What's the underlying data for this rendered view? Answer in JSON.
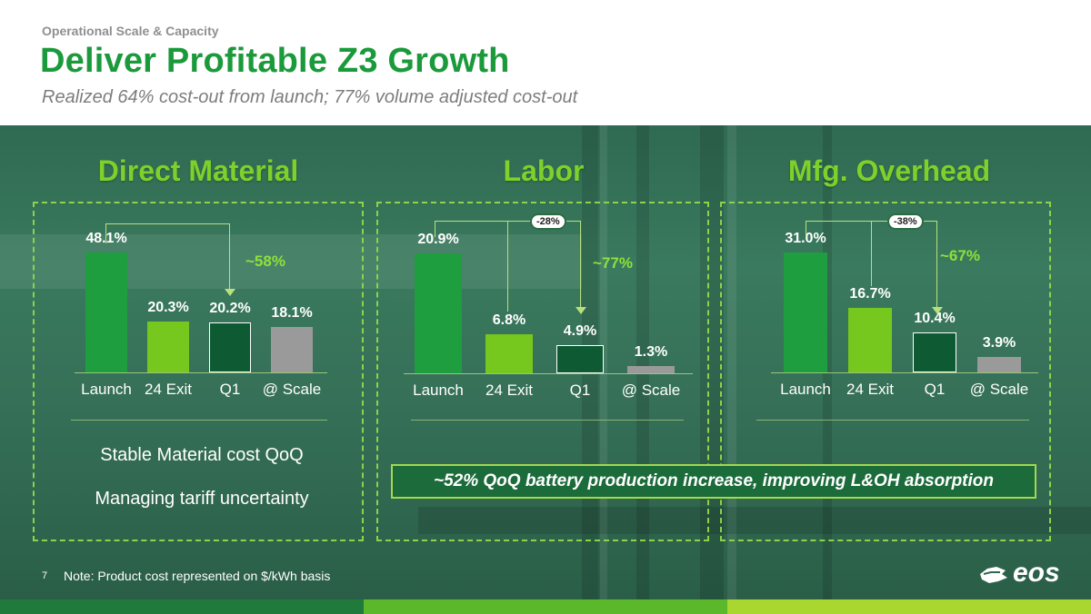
{
  "header": {
    "eyebrow": "Operational Scale & Capacity",
    "title": "Deliver Profitable Z3 Growth",
    "subtitle": "Realized 64% cost-out from launch; 77% volume adjusted cost-out"
  },
  "colors": {
    "title_green": "#1b9a3b",
    "section_green": "#7dd12a",
    "bar_launch": "#1e9e3e",
    "bar_exit": "#76c71e",
    "bar_q1": "#0e5a33",
    "bar_scale": "#9a9a9a"
  },
  "sections": [
    {
      "title": "Direct Material",
      "change_label": "~58%",
      "categories": [
        "Launch",
        "24 Exit",
        "Q1",
        "@ Scale"
      ],
      "values": [
        48.1,
        20.3,
        20.2,
        18.1
      ],
      "value_labels": [
        "48.1%",
        "20.3%",
        "20.2%",
        "18.1%"
      ],
      "notes": [
        "Stable Material cost QoQ",
        "Managing tariff uncertainty"
      ]
    },
    {
      "title": "Labor",
      "pill": "-28%",
      "change_label": "~77%",
      "categories": [
        "Launch",
        "24 Exit",
        "Q1",
        "@ Scale"
      ],
      "values": [
        20.9,
        6.8,
        4.9,
        1.3
      ],
      "value_labels": [
        "20.9%",
        "6.8%",
        "4.9%",
        "1.3%"
      ]
    },
    {
      "title": "Mfg. Overhead",
      "pill": "-38%",
      "change_label": "~67%",
      "categories": [
        "Launch",
        "24 Exit",
        "Q1",
        "@ Scale"
      ],
      "values": [
        31.0,
        16.7,
        10.4,
        3.9
      ],
      "value_labels": [
        "31.0%",
        "16.7%",
        "10.4%",
        "3.9%"
      ]
    }
  ],
  "callout": "~52% QoQ battery production increase, improving L&OH absorption",
  "footer": {
    "page_number": "7",
    "note": "Note: Product cost represented on $/kWh basis",
    "logo": "eos"
  },
  "chart_data": [
    {
      "type": "bar",
      "title": "Direct Material",
      "categories": [
        "Launch",
        "24 Exit",
        "Q1",
        "@ Scale"
      ],
      "values": [
        48.1,
        20.3,
        20.2,
        18.1
      ]
    },
    {
      "type": "bar",
      "title": "Labor",
      "categories": [
        "Launch",
        "24 Exit",
        "Q1",
        "@ Scale"
      ],
      "values": [
        20.9,
        6.8,
        4.9,
        1.3
      ]
    },
    {
      "type": "bar",
      "title": "Mfg. Overhead",
      "categories": [
        "Launch",
        "24 Exit",
        "Q1",
        "@ Scale"
      ],
      "values": [
        31.0,
        16.7,
        10.4,
        3.9
      ]
    }
  ]
}
